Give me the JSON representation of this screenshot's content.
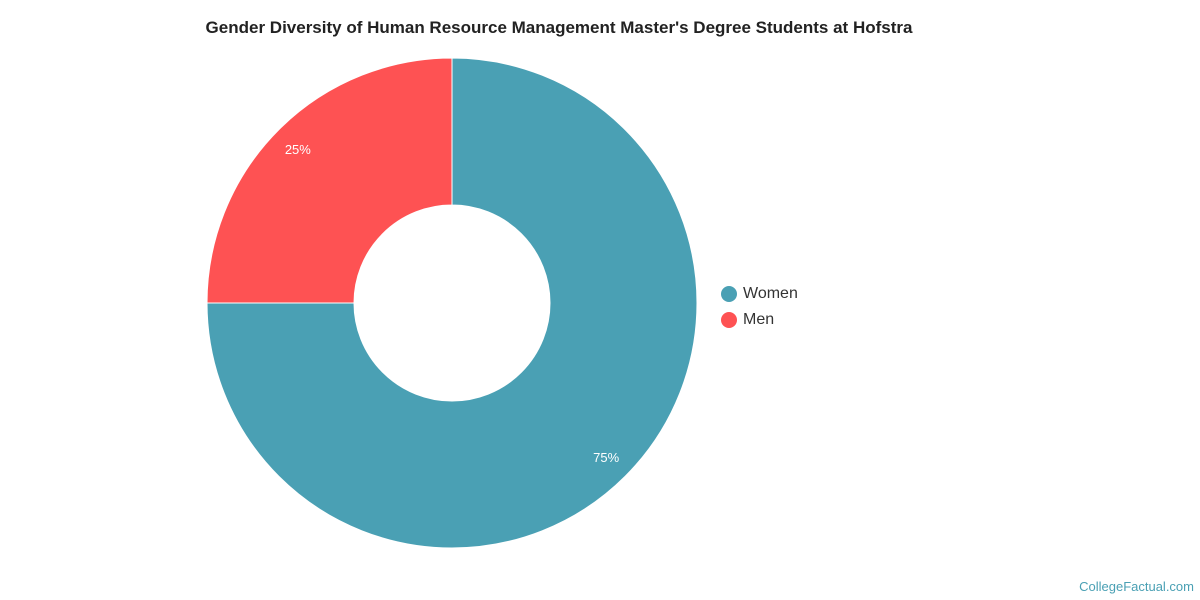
{
  "chart_data": {
    "type": "pie",
    "donut": true,
    "title": "Gender Diversity of Human Resource Management Master's Degree Students at Hofstra",
    "categories": [
      "Women",
      "Men"
    ],
    "values": [
      75,
      25
    ],
    "labels": [
      "75%",
      "25%"
    ],
    "colors": [
      "#4aa0b4",
      "#fe5253"
    ],
    "legend": "right"
  },
  "footer": {
    "credit": "CollegeFactual.com"
  }
}
